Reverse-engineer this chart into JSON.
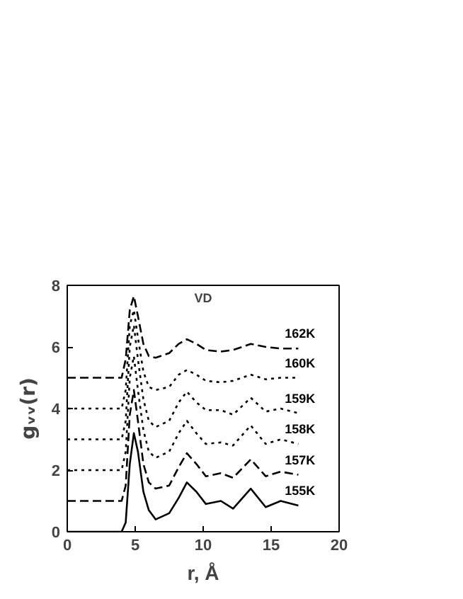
{
  "chart_data": {
    "type": "line",
    "xlabel": "r, Å",
    "ylabel": "gᵥᵥ(r)",
    "annotations": [
      "VD"
    ],
    "x": [
      0,
      4.0,
      4.3,
      4.6,
      4.9,
      5.2,
      5.6,
      6.0,
      6.5,
      7.5,
      8.2,
      8.8,
      9.5,
      10.2,
      11.3,
      12.2,
      13.5,
      14.6,
      15.7,
      17
    ],
    "series": [
      {
        "name": "155K",
        "color": "#000000",
        "line_style": "solid",
        "values": [
          0,
          0,
          0.3,
          2.2,
          3.2,
          2.6,
          1.3,
          0.7,
          0.4,
          0.6,
          1.1,
          1.6,
          1.3,
          0.9,
          1.0,
          0.75,
          1.4,
          0.8,
          1.0,
          0.85
        ]
      },
      {
        "name": "157K",
        "color": "#000000",
        "line_style": "dashed",
        "values": [
          1,
          1,
          1.5,
          3.8,
          4.6,
          3.6,
          2.2,
          1.6,
          1.4,
          1.5,
          2.1,
          2.55,
          2.2,
          1.8,
          1.9,
          1.75,
          2.35,
          1.8,
          1.95,
          1.85
        ]
      },
      {
        "name": "158K",
        "color": "#000000",
        "line_style": "dotted",
        "values": [
          2,
          2,
          2.6,
          5.0,
          5.7,
          4.6,
          3.3,
          2.6,
          2.4,
          2.6,
          3.2,
          3.6,
          3.2,
          2.85,
          2.9,
          2.8,
          3.45,
          2.85,
          3.0,
          2.85
        ]
      },
      {
        "name": "159K",
        "color": "#000000",
        "line_style": "dotted",
        "values": [
          3,
          3,
          3.6,
          6.0,
          6.7,
          5.6,
          4.3,
          3.6,
          3.4,
          3.6,
          4.2,
          4.55,
          4.2,
          3.95,
          3.95,
          3.8,
          4.35,
          3.9,
          4.0,
          3.85
        ]
      },
      {
        "name": "160K",
        "color": "#000000",
        "line_style": "dotted",
        "values": [
          4,
          4,
          4.6,
          6.7,
          7.2,
          6.3,
          5.2,
          4.7,
          4.6,
          4.7,
          5.1,
          5.25,
          5.1,
          4.9,
          4.85,
          4.9,
          5.1,
          4.95,
          5.0,
          5.0
        ]
      },
      {
        "name": "162K",
        "color": "#000000",
        "line_style": "dashed",
        "values": [
          5,
          5,
          5.6,
          7.2,
          7.65,
          7.0,
          6.1,
          5.7,
          5.65,
          5.8,
          6.1,
          6.25,
          6.1,
          5.9,
          5.85,
          5.9,
          6.1,
          6.0,
          5.95,
          5.95
        ]
      }
    ],
    "xlim": [
      0,
      20
    ],
    "ylim": [
      0,
      8
    ],
    "xticks": [
      0,
      5,
      10,
      15,
      20
    ],
    "yticks": [
      0,
      2,
      4,
      6,
      8
    ],
    "grid": false
  }
}
